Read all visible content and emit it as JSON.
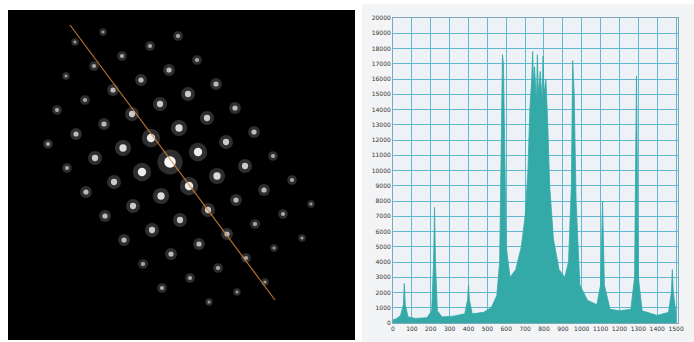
{
  "chart_data": [
    {
      "type": "scatter",
      "tick_labels": false,
      "grid": false,
      "xlim": [
        8,
        355
      ],
      "ylim": [
        340,
        10
      ],
      "series": [
        {
          "type": "scatter",
          "color": "#ffffff",
          "x": [
            75,
            94,
            113,
            132,
            151,
            170,
            189,
            208,
            227,
            246,
            265,
            103,
            122,
            141,
            160,
            179,
            198,
            217,
            236,
            255,
            274,
            150,
            169,
            188,
            207,
            226,
            245,
            264,
            283,
            302,
            178,
            197,
            216,
            235,
            254,
            273,
            292,
            311,
            66,
            85,
            104,
            123,
            142,
            161,
            180,
            199,
            218,
            237,
            57,
            76,
            95,
            114,
            133,
            152,
            171,
            190,
            209,
            48,
            67,
            86,
            105,
            124,
            143,
            162
          ],
          "values": [
            42,
            66,
            90,
            114,
            138,
            162,
            186,
            210,
            234,
            258,
            282,
            32,
            56,
            80,
            104,
            128,
            152,
            176,
            200,
            224,
            248,
            46,
            70,
            94,
            118,
            142,
            166,
            190,
            214,
            238,
            36,
            60,
            84,
            108,
            132,
            156,
            180,
            204,
            76,
            100,
            124,
            148,
            172,
            196,
            220,
            244,
            268,
            292,
            110,
            134,
            158,
            182,
            206,
            230,
            254,
            278,
            302,
            144,
            168,
            192,
            216,
            240,
            264,
            288
          ],
          "size": [
            2,
            3,
            4,
            5,
            7,
            10,
            7,
            5,
            4,
            3,
            2,
            2,
            3,
            4,
            5,
            6,
            7,
            6,
            4,
            3,
            2,
            3,
            4,
            5,
            5,
            5,
            5,
            4,
            3,
            2,
            3,
            3,
            4,
            4,
            4,
            3,
            3,
            2,
            2,
            3,
            4,
            6,
            7,
            6,
            5,
            4,
            3,
            2,
            3,
            4,
            5,
            5,
            5,
            5,
            4,
            3,
            2,
            3,
            3,
            4,
            4,
            4,
            3,
            3
          ]
        },
        {
          "type": "line",
          "color": "#d2853c",
          "x": [
            70,
            275
          ],
          "values": [
            25,
            300
          ]
        }
      ]
    },
    {
      "type": "area",
      "color": "#33aaa8",
      "grid": true,
      "x": [
        0,
        20,
        40,
        55,
        60,
        65,
        80,
        120,
        180,
        205,
        215,
        220,
        225,
        235,
        260,
        320,
        380,
        395,
        400,
        405,
        420,
        480,
        520,
        550,
        565,
        575,
        580,
        585,
        590,
        600,
        620,
        650,
        680,
        700,
        715,
        725,
        735,
        740,
        745,
        750,
        760,
        765,
        770,
        780,
        790,
        795,
        800,
        810,
        820,
        830,
        850,
        880,
        910,
        930,
        945,
        952,
        960,
        970,
        990,
        1030,
        1080,
        1100,
        1110,
        1120,
        1150,
        1200,
        1260,
        1280,
        1290,
        1300,
        1320,
        1400,
        1460,
        1475,
        1480,
        1485,
        1500
      ],
      "values": [
        200,
        300,
        500,
        1200,
        2600,
        1200,
        400,
        300,
        350,
        800,
        4000,
        7600,
        4000,
        800,
        400,
        450,
        600,
        1500,
        2500,
        1500,
        600,
        700,
        1000,
        1800,
        4000,
        12000,
        17600,
        17000,
        12000,
        5000,
        3000,
        3500,
        5000,
        7000,
        10000,
        14000,
        16000,
        17800,
        15500,
        16800,
        14500,
        17600,
        15000,
        16500,
        14500,
        17500,
        15000,
        16000,
        13000,
        9000,
        5500,
        3500,
        3000,
        4000,
        9000,
        17200,
        15000,
        8000,
        2500,
        1500,
        1200,
        2500,
        8000,
        2500,
        900,
        800,
        900,
        3000,
        16200,
        3000,
        800,
        500,
        700,
        2000,
        3500,
        2000,
        600
      ],
      "xlim": [
        0,
        1510
      ],
      "xticks": [
        0,
        100,
        200,
        300,
        400,
        500,
        600,
        700,
        800,
        900,
        1000,
        1100,
        1200,
        1300,
        1400,
        1500
      ],
      "ylim": [
        0,
        20000
      ],
      "yticks": [
        0,
        1000,
        2000,
        3000,
        4000,
        5000,
        6000,
        7000,
        8000,
        9000,
        10000,
        11000,
        12000,
        13000,
        14000,
        15000,
        16000,
        17000,
        18000,
        19000,
        20000
      ]
    }
  ]
}
